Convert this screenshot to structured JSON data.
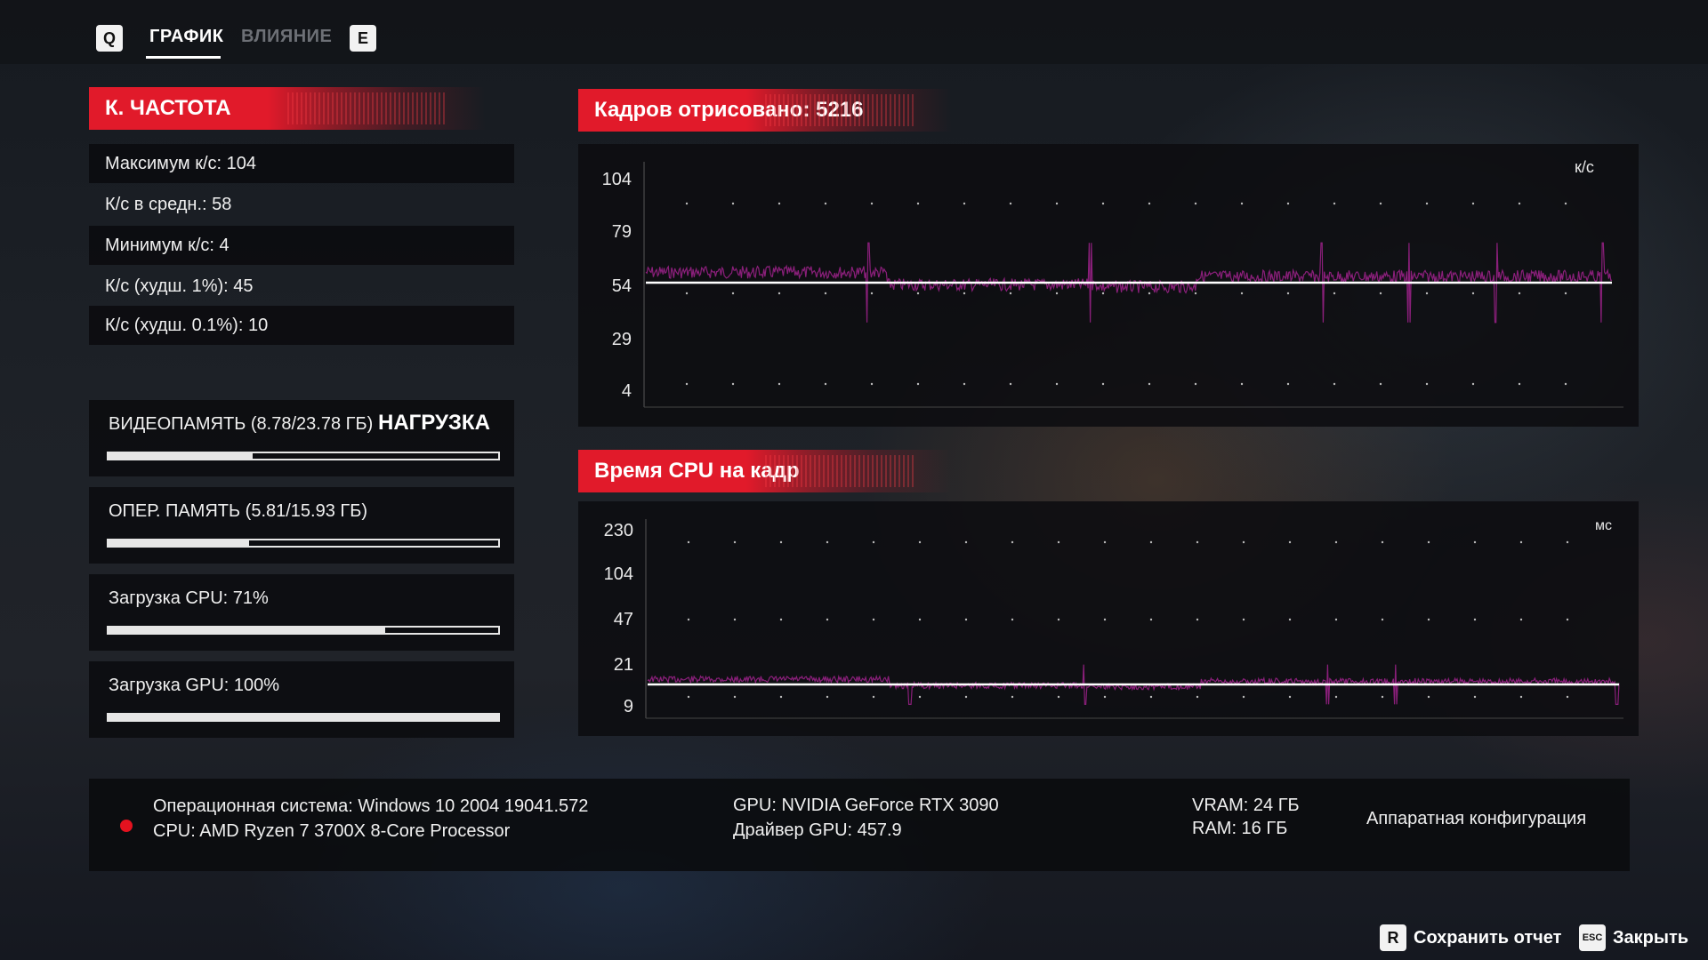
{
  "topbar": {
    "key_left": "Q",
    "key_right": "E",
    "tabs": [
      {
        "label": "ГРАФИК",
        "active": true
      },
      {
        "label": "ВЛИЯНИЕ",
        "active": false
      }
    ]
  },
  "fps_panel": {
    "title": "К. ЧАСТОТА",
    "stats": [
      "Максимум к/с: 104",
      "К/с в средн.: 58",
      "Минимум к/с: 4",
      "К/с (худш. 1%): 45",
      "К/с (худш. 0.1%): 10"
    ]
  },
  "load_panel": {
    "title": "НАГРУЗКА",
    "items": [
      {
        "label": "ВИДЕОПАМЯТЬ (8.78/23.78 ГБ)",
        "fraction": 0.37
      },
      {
        "label": "ОПЕР. ПАМЯТЬ (5.81/15.93 ГБ)",
        "fraction": 0.36
      },
      {
        "label": "Загрузка CPU: 71%",
        "fraction": 0.71
      },
      {
        "label": "Загрузка GPU: 100%",
        "fraction": 1.0
      }
    ]
  },
  "frames_chart": {
    "title": "Кадров отрисовано: 5216",
    "unit": "к/с",
    "y_ticks": [
      "104",
      "79",
      "54",
      "29",
      "4"
    ],
    "average_line": 58,
    "series_color": "#8a1f7a",
    "avg_color": "#ffffff"
  },
  "cpu_chart": {
    "title": "Время CPU на кадр",
    "unit": "мс",
    "y_ticks": [
      "230",
      "104",
      "47",
      "21",
      "9"
    ],
    "series_color": "#8a1f7a",
    "avg_color": "#ffffff"
  },
  "system": {
    "os": "Операционная система: Windows 10 2004 19041.572",
    "cpu": "CPU: AMD Ryzen 7 3700X 8-Core Processor",
    "gpu": "GPU: NVIDIA GeForce RTX 3090",
    "driver": "Драйвер GPU: 457.9",
    "vram": "VRAM: 24 ГБ",
    "ram": "RAM: 16 ГБ",
    "hardware_label": "Аппаратная конфигурация"
  },
  "footer": {
    "save_key": "R",
    "save_label": "Сохранить отчет",
    "close_key": "ESC",
    "close_label": "Закрыть"
  }
}
